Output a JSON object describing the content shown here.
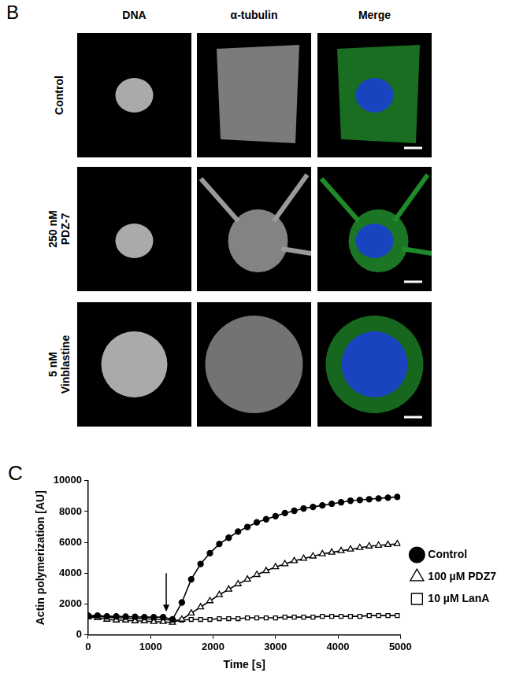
{
  "panel_b": {
    "label": "B",
    "columns": [
      "DNA",
      "α-tubulin",
      "Merge"
    ],
    "rows": [
      "Control",
      "250 nM PDZ-7",
      "5 nM Vinblastine"
    ]
  },
  "chart_data": {
    "panel": "C",
    "type": "line",
    "x_label": "Time [s]",
    "y_label": "Actin polymerization [AU]",
    "x": [
      0,
      150,
      300,
      450,
      600,
      750,
      900,
      1050,
      1200,
      1350,
      1500,
      1650,
      1800,
      1950,
      2100,
      2250,
      2400,
      2550,
      2700,
      2850,
      3000,
      3150,
      3300,
      3450,
      3600,
      3750,
      3900,
      4050,
      4200,
      4350,
      4500,
      4650,
      4800,
      4950
    ],
    "series": [
      {
        "name": "Control",
        "color": "#000000",
        "marker": "circle",
        "values": [
          1250,
          1250,
          1200,
          1200,
          1180,
          1170,
          1150,
          1150,
          1150,
          1000,
          2100,
          3600,
          4600,
          5300,
          5900,
          6300,
          6700,
          7000,
          7300,
          7500,
          7700,
          7900,
          8050,
          8200,
          8300,
          8400,
          8500,
          8600,
          8700,
          8750,
          8800,
          8850,
          8900,
          8950
        ]
      },
      {
        "name": "100 µM PDZ7",
        "color": "#000000",
        "marker": "open-triangle",
        "values": [
          1150,
          1100,
          1000,
          950,
          950,
          900,
          900,
          850,
          850,
          800,
          1000,
          1400,
          1800,
          2200,
          2600,
          2950,
          3300,
          3600,
          3900,
          4150,
          4400,
          4600,
          4800,
          4950,
          5100,
          5250,
          5350,
          5450,
          5550,
          5650,
          5750,
          5800,
          5850,
          5900
        ]
      },
      {
        "name": "10 µM LanA",
        "color": "#000000",
        "marker": "open-square",
        "values": [
          1200,
          1200,
          1150,
          1100,
          1100,
          1050,
          1050,
          1000,
          1000,
          950,
          950,
          1000,
          1000,
          1000,
          1050,
          1050,
          1050,
          1100,
          1100,
          1100,
          1100,
          1150,
          1150,
          1150,
          1150,
          1200,
          1200,
          1200,
          1200,
          1200,
          1250,
          1250,
          1250,
          1250
        ]
      }
    ],
    "xlim": [
      0,
      5000
    ],
    "xticks": [
      0,
      1000,
      2000,
      3000,
      4000,
      5000
    ],
    "ylim": [
      0,
      10000
    ],
    "yticks": [
      0,
      2000,
      4000,
      6000,
      8000,
      10000
    ],
    "grid": false,
    "legend": "right",
    "annotations": [
      {
        "type": "arrow",
        "x": 1250,
        "y_start": 4000,
        "y_end": 1500
      }
    ]
  }
}
